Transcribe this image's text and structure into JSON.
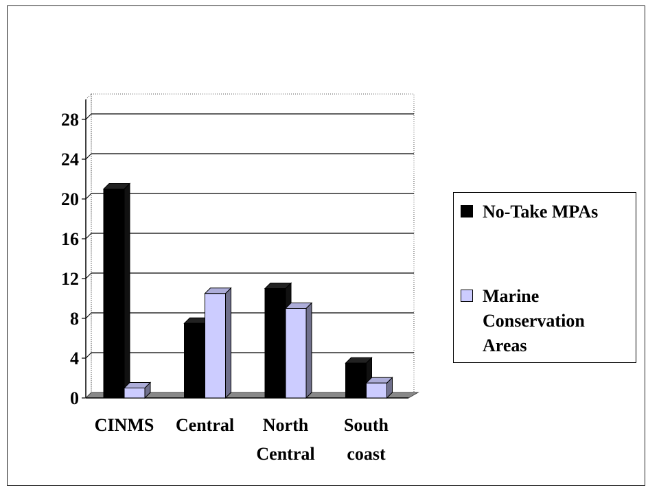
{
  "chart_data": {
    "type": "bar",
    "categories": [
      "CINMS",
      "Central",
      "North Central",
      "South coast"
    ],
    "category_lines": [
      [
        "CINMS"
      ],
      [
        "Central"
      ],
      [
        "North",
        "Central"
      ],
      [
        "South",
        "coast"
      ]
    ],
    "series": [
      {
        "name": "No-Take MPAs",
        "values": [
          21,
          7.5,
          11,
          3.5
        ],
        "color": "#000000"
      },
      {
        "name": "Marine Conservation Areas",
        "values": [
          1,
          10.5,
          9,
          1.5
        ],
        "color": "#ccccff"
      }
    ],
    "title": "",
    "xlabel": "",
    "ylabel": "",
    "ylim": [
      0,
      30
    ],
    "yticks": [
      "0",
      "4",
      "8",
      "12",
      "16",
      "20",
      "24",
      "28"
    ],
    "grid": true,
    "legend_position": "right",
    "style": "3d"
  },
  "legend": {
    "items": [
      {
        "label": "No-Take MPAs",
        "color": "#000000"
      },
      {
        "label": "Marine Conservation Areas",
        "color": "#ccccff"
      }
    ]
  }
}
